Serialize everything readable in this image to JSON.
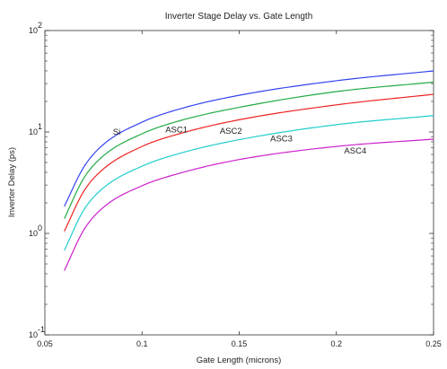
{
  "chart_data": {
    "type": "line",
    "title": "Inverter Stage Delay vs. Gate Length",
    "xlabel": "Gate Length (microns)",
    "ylabel": "Inverter Delay (ps)",
    "xlim": [
      0.05,
      0.25
    ],
    "ylim": [
      0.1,
      100
    ],
    "y_scale": "log",
    "x_ticks": [
      0.05,
      0.1,
      0.15,
      0.2,
      0.25
    ],
    "x_tick_labels": [
      "0.05",
      "0.1",
      "0.15",
      "0.2",
      "0.25"
    ],
    "y_ticks": [
      0.1,
      1,
      10,
      100
    ],
    "y_tick_labels": [
      {
        "base": "10",
        "exp": "-1"
      },
      {
        "base": "10",
        "exp": "0"
      },
      {
        "base": "10",
        "exp": "1"
      },
      {
        "base": "10",
        "exp": "2"
      }
    ],
    "grid": false,
    "legend": "none (inline labels)",
    "series": [
      {
        "name": "Si",
        "color": "#3344ee",
        "x": [
          0.06,
          0.07,
          0.08,
          0.1,
          0.12,
          0.15,
          0.2,
          0.25
        ],
        "y": [
          1.85,
          4.5,
          7.5,
          12.5,
          17.0,
          23.0,
          32.0,
          40.0
        ],
        "label_pos": [
          0.085,
          10.0
        ]
      },
      {
        "name": "ASC1",
        "color": "#22aa44",
        "x": [
          0.06,
          0.07,
          0.08,
          0.1,
          0.12,
          0.15,
          0.2,
          0.25
        ],
        "y": [
          1.4,
          3.5,
          5.8,
          9.6,
          13.0,
          17.5,
          25.0,
          31.0
        ],
        "label_pos": [
          0.112,
          10.5
        ]
      },
      {
        "name": "ASC2",
        "color": "#ee2222",
        "x": [
          0.06,
          0.07,
          0.08,
          0.1,
          0.12,
          0.15,
          0.2,
          0.25
        ],
        "y": [
          1.05,
          2.6,
          4.3,
          7.2,
          9.7,
          13.2,
          18.5,
          23.5
        ],
        "label_pos": [
          0.14,
          10.2
        ]
      },
      {
        "name": "ASC3",
        "color": "#22cccc",
        "x": [
          0.06,
          0.07,
          0.08,
          0.1,
          0.12,
          0.15,
          0.2,
          0.25
        ],
        "y": [
          0.68,
          1.7,
          2.8,
          4.6,
          6.2,
          8.4,
          11.8,
          14.5
        ],
        "label_pos": [
          0.166,
          8.6
        ]
      },
      {
        "name": "ASC4",
        "color": "#cc22cc",
        "x": [
          0.06,
          0.07,
          0.08,
          0.1,
          0.12,
          0.15,
          0.2,
          0.25
        ],
        "y": [
          0.43,
          1.08,
          1.8,
          2.95,
          3.95,
          5.35,
          7.2,
          8.5
        ],
        "label_pos": [
          0.204,
          6.5
        ]
      }
    ]
  }
}
